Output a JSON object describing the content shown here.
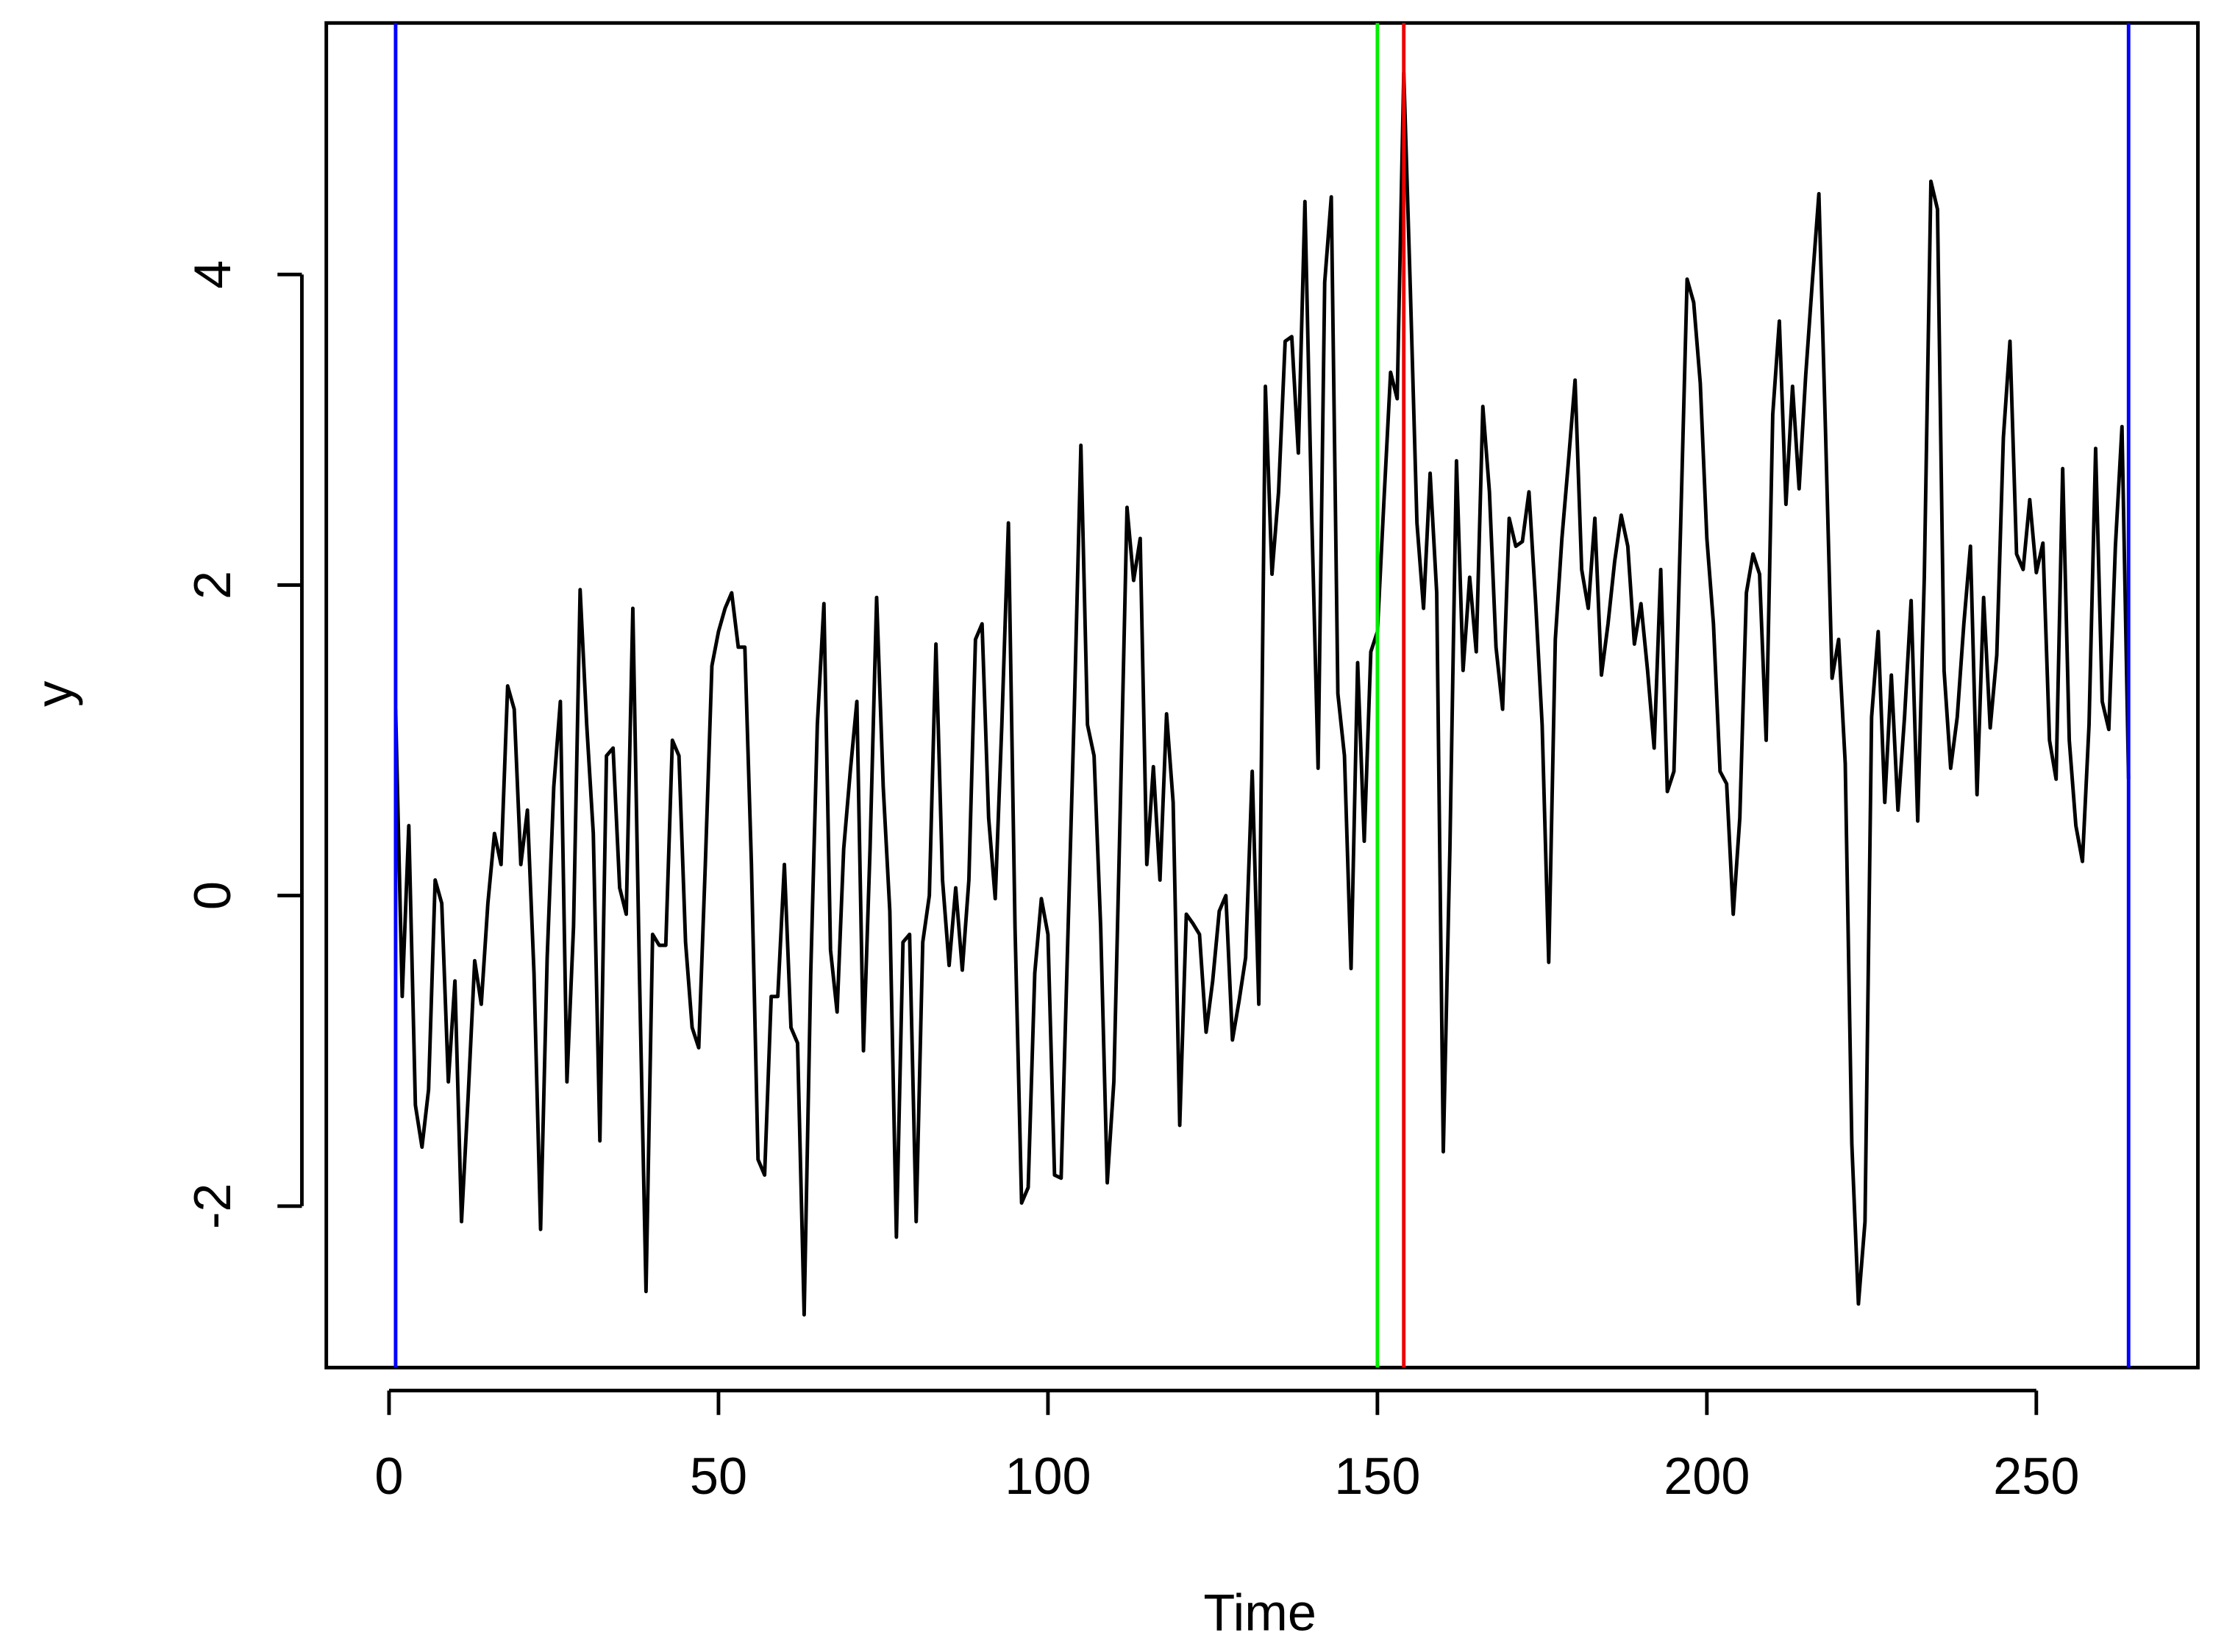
{
  "chart_data": {
    "type": "line",
    "xlabel": "Time",
    "ylabel": "y",
    "xlim": [
      -9.52,
      274.52
    ],
    "ylim": [
      -3.04,
      5.62
    ],
    "xticks": [
      0,
      50,
      100,
      150,
      200,
      250
    ],
    "yticks": [
      -2,
      0,
      2,
      4
    ],
    "vlines": [
      {
        "x": 1,
        "color": "#0000ff"
      },
      {
        "x": 264,
        "color": "#0000ff"
      },
      {
        "x": 150,
        "color": "#00ee00"
      },
      {
        "x": 154,
        "color": "#ee0000"
      }
    ],
    "x": [
      1,
      2,
      3,
      4,
      5,
      6,
      7,
      8,
      9,
      10,
      11,
      12,
      13,
      14,
      15,
      16,
      17,
      18,
      19,
      20,
      21,
      22,
      23,
      24,
      25,
      26,
      27,
      28,
      29,
      30,
      31,
      32,
      33,
      34,
      35,
      36,
      37,
      38,
      39,
      40,
      41,
      42,
      43,
      44,
      45,
      46,
      47,
      48,
      49,
      50,
      51,
      52,
      53,
      54,
      55,
      56,
      57,
      58,
      59,
      60,
      61,
      62,
      63,
      64,
      65,
      66,
      67,
      68,
      69,
      70,
      71,
      72,
      73,
      74,
      75,
      76,
      77,
      78,
      79,
      80,
      81,
      82,
      83,
      84,
      85,
      86,
      87,
      88,
      89,
      90,
      91,
      92,
      93,
      94,
      95,
      96,
      97,
      98,
      99,
      100,
      101,
      102,
      103,
      104,
      105,
      106,
      107,
      108,
      109,
      110,
      111,
      112,
      113,
      114,
      115,
      116,
      117,
      118,
      119,
      120,
      121,
      122,
      123,
      124,
      125,
      126,
      127,
      128,
      129,
      130,
      131,
      132,
      133,
      134,
      135,
      136,
      137,
      138,
      139,
      140,
      141,
      142,
      143,
      144,
      145,
      146,
      147,
      148,
      149,
      150,
      151,
      152,
      153,
      154,
      155,
      156,
      157,
      158,
      159,
      160,
      161,
      162,
      163,
      164,
      165,
      166,
      167,
      168,
      169,
      170,
      171,
      172,
      173,
      174,
      175,
      176,
      177,
      178,
      179,
      180,
      181,
      182,
      183,
      184,
      185,
      186,
      187,
      188,
      189,
      190,
      191,
      192,
      193,
      194,
      195,
      196,
      197,
      198,
      199,
      200,
      201,
      202,
      203,
      204,
      205,
      206,
      207,
      208,
      209,
      210,
      211,
      212,
      213,
      214,
      215,
      216,
      217,
      218,
      219,
      220,
      221,
      222,
      223,
      224,
      225,
      226,
      227,
      228,
      229,
      230,
      231,
      232,
      233,
      234,
      235,
      236,
      237,
      238,
      239,
      240,
      241,
      242,
      243,
      244,
      245,
      246,
      247,
      248,
      249,
      250,
      251,
      252,
      253,
      254,
      255,
      256,
      257,
      258,
      259,
      260,
      261,
      262,
      263,
      264
    ],
    "series": [
      {
        "color": "#000000",
        "values": [
          1.2,
          -0.65,
          0.45,
          -1.35,
          -1.62,
          -1.25,
          0.1,
          -0.05,
          -1.2,
          -0.55,
          -2.1,
          -1.3,
          -0.42,
          -0.7,
          -0.05,
          0.4,
          0.2,
          1.35,
          1.2,
          0.2,
          0.55,
          -0.5,
          -2.15,
          -0.4,
          0.7,
          1.25,
          -1.2,
          -0.2,
          1.97,
          1.1,
          0.4,
          -1.58,
          0.9,
          0.95,
          0.05,
          -0.12,
          1.85,
          -0.5,
          -2.55,
          -0.25,
          -0.32,
          -0.32,
          1.0,
          0.9,
          -0.3,
          -0.85,
          -0.98,
          0.2,
          1.48,
          1.7,
          1.85,
          1.95,
          1.6,
          1.6,
          0.2,
          -1.7,
          -1.8,
          -0.65,
          -0.65,
          0.2,
          -0.85,
          -0.95,
          -2.7,
          -0.5,
          1.1,
          1.88,
          -0.35,
          -0.75,
          0.3,
          0.8,
          1.25,
          -1.0,
          0.3,
          1.92,
          0.7,
          -0.1,
          -2.2,
          -0.3,
          -0.25,
          -2.1,
          -0.3,
          0.0,
          1.62,
          0.1,
          -0.45,
          0.05,
          -0.48,
          0.1,
          1.65,
          1.75,
          0.5,
          -0.02,
          1.1,
          2.4,
          -0.2,
          -1.98,
          -1.88,
          -0.5,
          -0.02,
          -0.25,
          -1.8,
          -1.82,
          -0.3,
          1.2,
          2.9,
          1.1,
          0.9,
          -0.2,
          -1.85,
          -1.2,
          0.6,
          2.5,
          2.03,
          2.3,
          0.2,
          0.83,
          0.1,
          1.17,
          0.6,
          -1.48,
          -0.12,
          -0.18,
          -0.25,
          -0.88,
          -0.55,
          -0.1,
          0.0,
          -0.93,
          -0.68,
          -0.4,
          0.8,
          -0.7,
          3.28,
          2.07,
          2.6,
          3.57,
          3.6,
          2.85,
          4.47,
          2.5,
          0.82,
          3.95,
          4.5,
          1.3,
          0.9,
          -0.47,
          1.5,
          0.35,
          1.57,
          1.7,
          2.55,
          3.37,
          3.2,
          5.3,
          3.9,
          2.4,
          1.85,
          2.72,
          1.95,
          -1.65,
          0.3,
          2.8,
          1.45,
          2.05,
          1.57,
          3.15,
          2.6,
          1.6,
          1.2,
          2.43,
          2.25,
          2.28,
          2.6,
          1.9,
          1.1,
          -0.43,
          1.65,
          2.3,
          2.8,
          3.32,
          2.1,
          1.85,
          2.43,
          1.42,
          1.75,
          2.15,
          2.45,
          2.25,
          1.62,
          1.88,
          1.45,
          0.95,
          2.1,
          0.67,
          0.8,
          2.35,
          3.97,
          3.82,
          3.3,
          2.3,
          1.75,
          0.8,
          0.72,
          -0.12,
          0.5,
          1.95,
          2.2,
          2.07,
          1.0,
          3.1,
          3.7,
          2.52,
          3.28,
          2.62,
          3.35,
          3.95,
          4.52,
          3.0,
          1.4,
          1.65,
          0.85,
          -1.6,
          -2.63,
          -2.1,
          1.15,
          1.7,
          0.6,
          1.42,
          0.55,
          1.15,
          1.9,
          0.48,
          2.05,
          4.6,
          4.42,
          1.45,
          0.82,
          1.15,
          1.75,
          2.25,
          0.65,
          1.92,
          1.08,
          1.55,
          2.95,
          3.57,
          2.2,
          2.1,
          2.55,
          2.08,
          2.27,
          1.0,
          0.75,
          2.75,
          1.0,
          0.45,
          0.22,
          1.1,
          2.88,
          1.25,
          1.07,
          2.25,
          3.02,
          0.75
        ]
      }
    ]
  }
}
